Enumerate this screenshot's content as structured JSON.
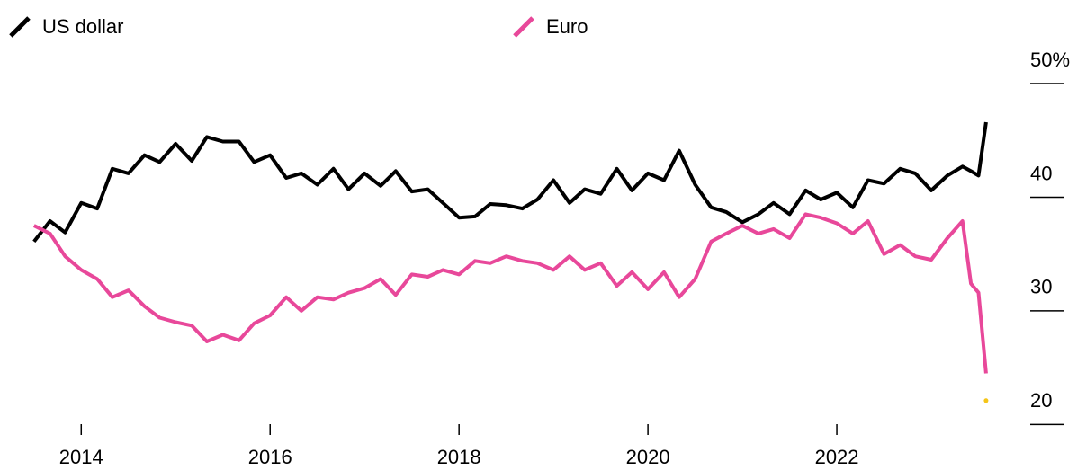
{
  "chart_data": {
    "type": "line",
    "x": [
      2013.5,
      2013.67,
      2013.83,
      2014,
      2014.17,
      2014.33,
      2014.5,
      2014.67,
      2014.83,
      2015,
      2015.17,
      2015.33,
      2015.5,
      2015.67,
      2015.83,
      2016,
      2016.17,
      2016.33,
      2016.5,
      2016.67,
      2016.83,
      2017,
      2017.17,
      2017.33,
      2017.5,
      2017.67,
      2017.83,
      2018,
      2018.17,
      2018.33,
      2018.5,
      2018.67,
      2018.83,
      2019,
      2019.17,
      2019.33,
      2019.5,
      2019.67,
      2019.83,
      2020,
      2020.17,
      2020.33,
      2020.5,
      2020.67,
      2020.83,
      2021,
      2021.17,
      2021.33,
      2021.5,
      2021.67,
      2021.83,
      2022,
      2022.17,
      2022.33,
      2022.5,
      2022.67,
      2022.83,
      2023,
      2023.17,
      2023.33,
      2023.42,
      2023.5,
      2023.58
    ],
    "series": [
      {
        "name": "US dollar",
        "color": "#000000",
        "values": [
          36.1,
          37.9,
          36.9,
          39.5,
          39.0,
          42.5,
          42.1,
          43.7,
          43.1,
          44.7,
          43.2,
          45.3,
          44.9,
          44.9,
          43.1,
          43.7,
          41.7,
          42.1,
          41.1,
          42.5,
          40.7,
          42.1,
          41.0,
          42.3,
          40.5,
          40.7,
          39.5,
          38.2,
          38.3,
          39.4,
          39.3,
          39.0,
          39.8,
          41.5,
          39.5,
          40.7,
          40.3,
          42.5,
          40.6,
          42.1,
          41.5,
          44.1,
          41.1,
          39.1,
          38.7,
          37.8,
          38.5,
          39.5,
          38.5,
          40.6,
          39.8,
          40.4,
          39.1,
          41.5,
          41.2,
          42.5,
          42.1,
          40.6,
          41.9,
          42.7,
          42.3,
          41.9,
          46.6
        ]
      },
      {
        "name": "Euro",
        "color": "#e8489a",
        "values": [
          37.5,
          36.8,
          34.8,
          33.6,
          32.8,
          31.2,
          31.8,
          30.4,
          29.4,
          29.0,
          28.7,
          27.3,
          27.9,
          27.4,
          28.9,
          29.6,
          31.2,
          30.0,
          31.2,
          31.0,
          31.6,
          32.0,
          32.8,
          31.4,
          33.2,
          33.0,
          33.6,
          33.2,
          34.4,
          34.2,
          34.8,
          34.4,
          34.2,
          33.6,
          34.8,
          33.6,
          34.2,
          32.2,
          33.4,
          31.9,
          33.4,
          31.2,
          32.8,
          36.1,
          36.8,
          37.5,
          36.8,
          37.2,
          36.4,
          38.5,
          38.2,
          37.7,
          36.8,
          37.9,
          35.0,
          35.8,
          34.8,
          34.5,
          36.4,
          37.9,
          32.4,
          31.6,
          24.5
        ]
      }
    ],
    "point": {
      "x": 2023.58,
      "y": 22.1,
      "color": "#f5c518"
    },
    "xlim": [
      2013.14,
      2024
    ],
    "xticks": [
      2014,
      2016,
      2018,
      2020,
      2022
    ],
    "ylim": [
      19,
      50
    ],
    "yticks": [
      20,
      30,
      40,
      {
        "value": 50,
        "label": "50%"
      }
    ]
  }
}
